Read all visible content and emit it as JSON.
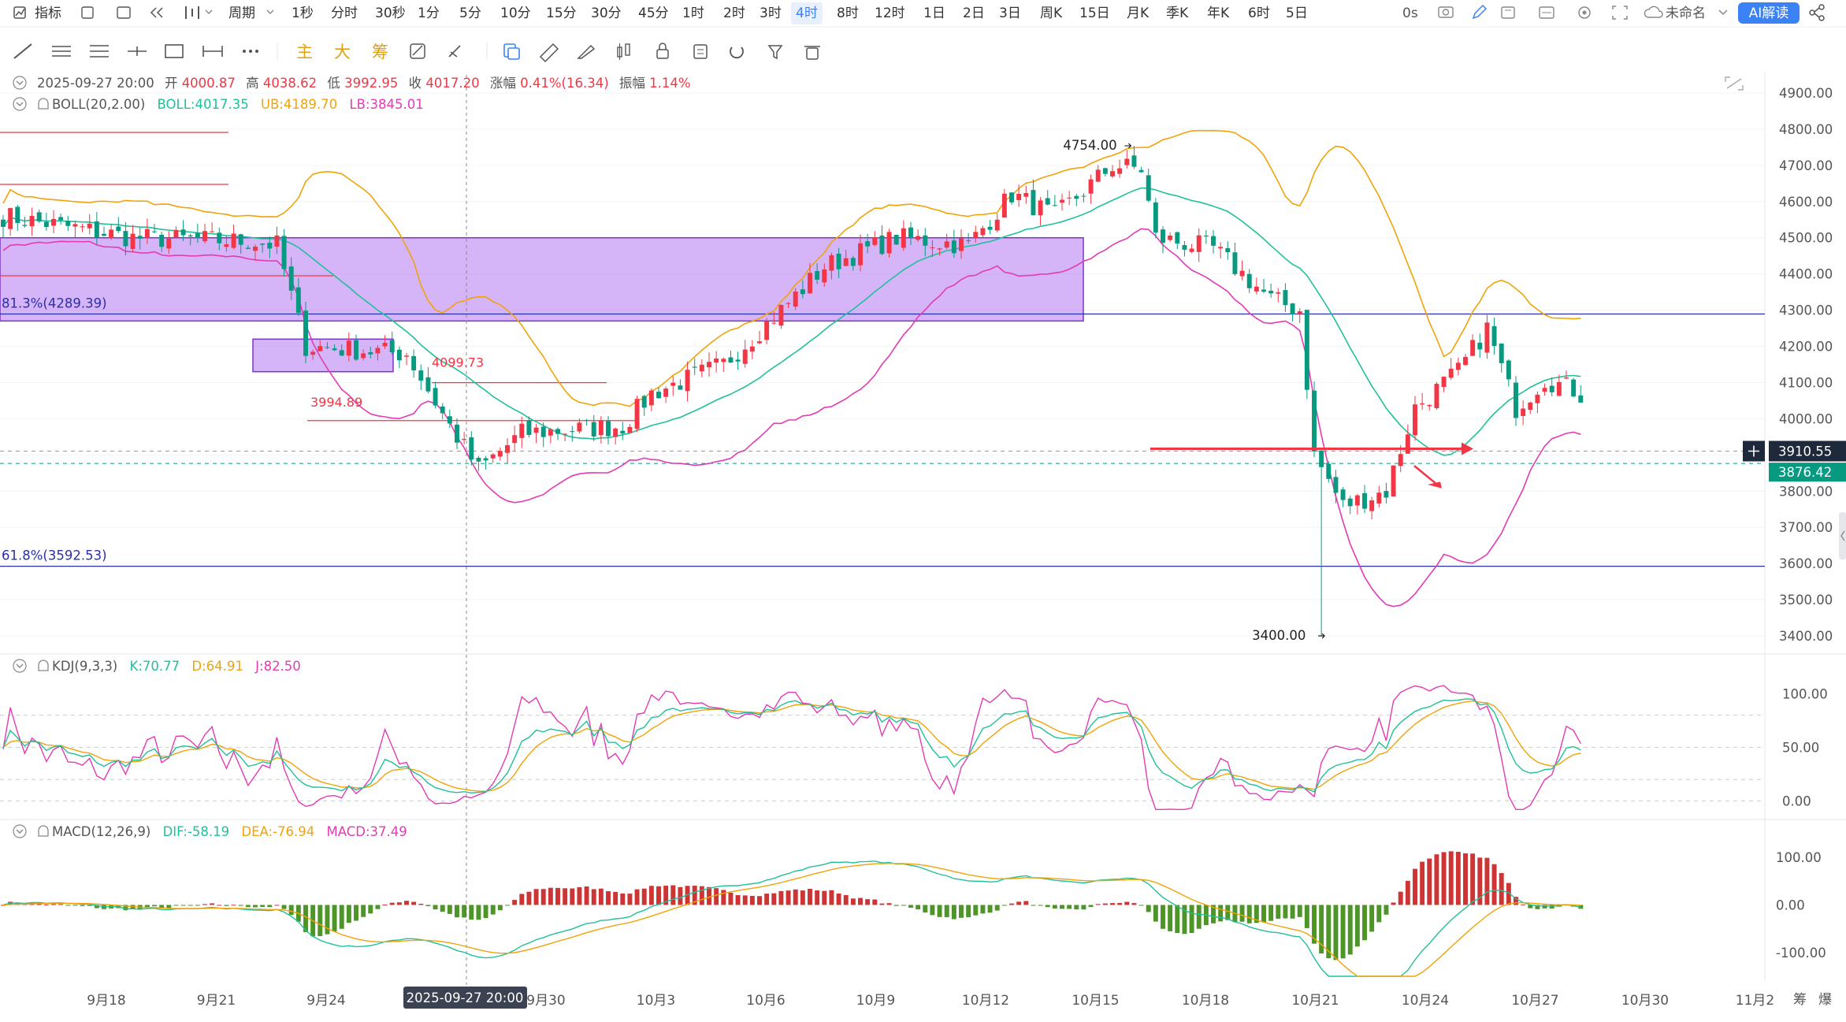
{
  "toolbar": {
    "items": [
      "指标",
      "周期",
      "1秒",
      "分时",
      "30秒",
      "1分",
      "5分",
      "10分",
      "15分",
      "30分",
      "45分",
      "1时",
      "2时",
      "3时",
      "4时",
      "8时",
      "12时",
      "1日",
      "2日",
      "3日",
      "周K",
      "15日",
      "月K",
      "季K",
      "年K",
      "6时",
      "5日"
    ],
    "active": "4时",
    "latency": "0s",
    "profile": "未命名",
    "ai_button": "AI解读"
  },
  "drawing_tools": {
    "labels": [
      "主",
      "大",
      "筹"
    ]
  },
  "price_info": {
    "datetime": "2025-09-27 20:00",
    "open_label": "开",
    "open": "4000.87",
    "high_label": "高",
    "high": "4038.62",
    "low_label": "低",
    "low": "3992.95",
    "close_label": "收",
    "close": "4017.20",
    "change_label": "涨幅",
    "change": "0.41%(16.34)",
    "amp_label": "振幅",
    "amp": "1.14%"
  },
  "boll": {
    "title": "BOLL(20,2.00)",
    "mid": "BOLL:4017.35",
    "ub": "UB:4189.70",
    "lb": "LB:3845.01"
  },
  "kdj": {
    "title": "KDJ(9,3,3)",
    "k": "K:70.77",
    "d": "D:64.91",
    "j": "J:82.50"
  },
  "macd": {
    "title": "MACD(12,26,9)",
    "dif": "DIF:-58.19",
    "dea": "DEA:-76.94",
    "macd": "MACD:37.49"
  },
  "annotations": {
    "high_label": "4754.00",
    "low_label": "3400.00",
    "fib_upper": "81.3%(4289.39)",
    "fib_lower": "61.8%(3592.53)",
    "level_a": "4099.73",
    "level_b": "3994.89",
    "price_tag_a": "3910.55",
    "price_tag_b": "3876.42",
    "crosshair_time": "2025-09-27 20:00",
    "side_labels": [
      "筹",
      "爆"
    ]
  },
  "colors": {
    "up": "#f23645",
    "down": "#089981",
    "macd_up": "#c81e1e",
    "macd_down": "#3a8a0e",
    "boll_mid": "#20c09a",
    "boll_ub": "#f0a30a",
    "boll_lb": "#e33bb5",
    "box": "#b377f0",
    "accent": "#3b82f6"
  },
  "chart_data": [
    {
      "type": "candlestick",
      "title": "",
      "ylim": [
        3350,
        4950
      ],
      "yticks": [
        3400,
        3500,
        3600,
        3700,
        3800,
        3900,
        4000,
        4100,
        4200,
        4300,
        4400,
        4500,
        4600,
        4700,
        4800,
        4900
      ],
      "ytick_labels": [
        "3400.00",
        "3500.00",
        "3600.00",
        "3700.00",
        "3800.00",
        "3900.00",
        "4000.00",
        "4100.00",
        "4200.00",
        "4300.00",
        "4400.00",
        "4500.00",
        "4600.00",
        "4700.00",
        "4800.00",
        "4900.00"
      ],
      "x_labels": [
        "9月18",
        "9月21",
        "9月24",
        "9月27",
        "9月30",
        "10月3",
        "10月6",
        "10月9",
        "10月12",
        "10月15",
        "10月18",
        "10月21",
        "10月24",
        "10月27",
        "10月30",
        "11月2"
      ],
      "bars": 220,
      "hlines": [
        {
          "label": "81.3%(4289.39)",
          "value": 4289.39
        },
        {
          "label": "61.8%(3592.53)",
          "value": 3592.53
        }
      ],
      "box_zones": [
        {
          "from": 4270,
          "to": 4500
        },
        {
          "from": 4130,
          "to": 4220
        }
      ],
      "close_anchors": [
        [
          0,
          4560
        ],
        [
          18,
          4500
        ],
        [
          34,
          4490
        ],
        [
          38,
          4480
        ],
        [
          42,
          4200
        ],
        [
          56,
          4180
        ],
        [
          62,
          3980
        ],
        [
          66,
          3860
        ],
        [
          72,
          3960
        ],
        [
          86,
          3980
        ],
        [
          90,
          4070
        ],
        [
          100,
          4150
        ],
        [
          108,
          4300
        ],
        [
          114,
          4420
        ],
        [
          124,
          4500
        ],
        [
          134,
          4480
        ],
        [
          140,
          4620
        ],
        [
          146,
          4560
        ],
        [
          154,
          4700
        ],
        [
          158,
          4690
        ],
        [
          160,
          4500
        ],
        [
          168,
          4470
        ],
        [
          176,
          4330
        ],
        [
          180,
          4300
        ],
        [
          182,
          3900
        ],
        [
          186,
          3760
        ],
        [
          192,
          3800
        ],
        [
          196,
          4030
        ],
        [
          202,
          4130
        ],
        [
          206,
          4250
        ],
        [
          210,
          4030
        ],
        [
          214,
          4110
        ],
        [
          218,
          4080
        ],
        [
          224,
          4000
        ],
        [
          230,
          3830
        ],
        [
          234,
          3800
        ],
        [
          236,
          3790
        ]
      ]
    },
    {
      "type": "line",
      "title": "KDJ(9,3,3)",
      "ylim": [
        -10,
        115
      ],
      "yticks": [
        0,
        50,
        100
      ],
      "ytick_labels": [
        "0.00",
        "50.00",
        "100.00"
      ],
      "series": [
        {
          "name": "K",
          "last": 70.77
        },
        {
          "name": "D",
          "last": 64.91
        },
        {
          "name": "J",
          "last": 82.5
        }
      ]
    },
    {
      "type": "bar",
      "title": "MACD(12,26,9)",
      "ylim": [
        -160,
        130
      ],
      "yticks": [
        -100,
        0,
        100
      ],
      "ytick_labels": [
        "-100.00",
        "0.00",
        "100.00"
      ],
      "series": [
        {
          "name": "DIF",
          "last": -58.19
        },
        {
          "name": "DEA",
          "last": -76.94
        },
        {
          "name": "MACD",
          "last": 37.49
        }
      ]
    }
  ]
}
